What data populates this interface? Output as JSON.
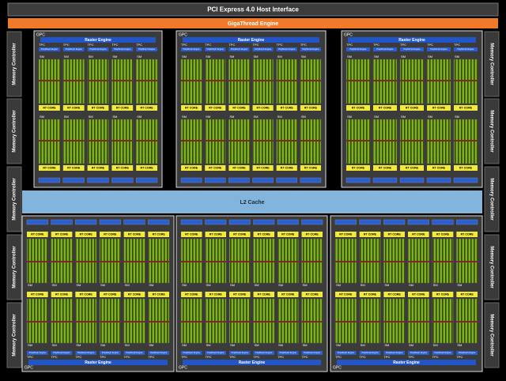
{
  "pci": "PCI Express 4.0 Host Interface",
  "gigathread": "GigaThread Engine",
  "l2_cache": "L2 Cache",
  "memory_controllers": {
    "left": [
      "Memory Controller",
      "Memory Controller",
      "Memory Controller",
      "Memory Controller",
      "Memory Controller"
    ],
    "right": [
      "Memory Controller",
      "Memory Controller",
      "Memory Controller",
      "Memory Controller",
      "Memory Controller"
    ]
  },
  "gpcs": [
    {
      "label": "GPC",
      "raster_engine": "Raster Engine",
      "tpcs": [
        {
          "label": "TPC",
          "polymorph_engine": "PolyMorph Engine",
          "sms": [
            {
              "label": "SM",
              "rt_core": "RT CORE"
            },
            {
              "label": "SM",
              "rt_core": "RT CORE"
            }
          ]
        },
        {
          "label": "TPC",
          "polymorph_engine": "PolyMorph Engine",
          "sms": [
            {
              "label": "SM",
              "rt_core": "RT CORE"
            },
            {
              "label": "SM",
              "rt_core": "RT CORE"
            }
          ]
        },
        {
          "label": "TPC",
          "polymorph_engine": "PolyMorph Engine",
          "sms": [
            {
              "label": "SM",
              "rt_core": "RT CORE"
            },
            {
              "label": "SM",
              "rt_core": "RT CORE"
            }
          ]
        },
        {
          "label": "TPC",
          "polymorph_engine": "PolyMorph Engine",
          "sms": [
            {
              "label": "SM",
              "rt_core": "RT CORE"
            },
            {
              "label": "SM",
              "rt_core": "RT CORE"
            }
          ]
        },
        {
          "label": "TPC",
          "polymorph_engine": "PolyMorph Engine",
          "sms": [
            {
              "label": "SM",
              "rt_core": "RT CORE"
            },
            {
              "label": "SM",
              "rt_core": "RT CORE"
            }
          ]
        }
      ]
    },
    {
      "label": "GPC",
      "raster_engine": "Raster Engine",
      "tpcs": [
        {
          "label": "TPC",
          "polymorph_engine": "PolyMorph Engine",
          "sms": [
            {
              "label": "SM",
              "rt_core": "RT CORE"
            },
            {
              "label": "SM",
              "rt_core": "RT CORE"
            }
          ]
        },
        {
          "label": "TPC",
          "polymorph_engine": "PolyMorph Engine",
          "sms": [
            {
              "label": "SM",
              "rt_core": "RT CORE"
            },
            {
              "label": "SM",
              "rt_core": "RT CORE"
            }
          ]
        },
        {
          "label": "TPC",
          "polymorph_engine": "PolyMorph Engine",
          "sms": [
            {
              "label": "SM",
              "rt_core": "RT CORE"
            },
            {
              "label": "SM",
              "rt_core": "RT CORE"
            }
          ]
        },
        {
          "label": "TPC",
          "polymorph_engine": "PolyMorph Engine",
          "sms": [
            {
              "label": "SM",
              "rt_core": "RT CORE"
            },
            {
              "label": "SM",
              "rt_core": "RT CORE"
            }
          ]
        },
        {
          "label": "TPC",
          "polymorph_engine": "PolyMorph Engine",
          "sms": [
            {
              "label": "SM",
              "rt_core": "RT CORE"
            },
            {
              "label": "SM",
              "rt_core": "RT CORE"
            }
          ]
        },
        {
          "label": "TPC",
          "polymorph_engine": "PolyMorph Engine",
          "sms": [
            {
              "label": "SM",
              "rt_core": "RT CORE"
            },
            {
              "label": "SM",
              "rt_core": "RT CORE"
            }
          ]
        }
      ]
    },
    {
      "label": "GPC",
      "raster_engine": "Raster Engine",
      "tpcs": [
        {
          "label": "TPC",
          "polymorph_engine": "PolyMorph Engine",
          "sms": [
            {
              "label": "SM",
              "rt_core": "RT CORE"
            },
            {
              "label": "SM",
              "rt_core": "RT CORE"
            }
          ]
        },
        {
          "label": "TPC",
          "polymorph_engine": "PolyMorph Engine",
          "sms": [
            {
              "label": "SM",
              "rt_core": "RT CORE"
            },
            {
              "label": "SM",
              "rt_core": "RT CORE"
            }
          ]
        },
        {
          "label": "TPC",
          "polymorph_engine": "PolyMorph Engine",
          "sms": [
            {
              "label": "SM",
              "rt_core": "RT CORE"
            },
            {
              "label": "SM",
              "rt_core": "RT CORE"
            }
          ]
        },
        {
          "label": "TPC",
          "polymorph_engine": "PolyMorph Engine",
          "sms": [
            {
              "label": "SM",
              "rt_core": "RT CORE"
            },
            {
              "label": "SM",
              "rt_core": "RT CORE"
            }
          ]
        },
        {
          "label": "TPC",
          "polymorph_engine": "PolyMorph Engine",
          "sms": [
            {
              "label": "SM",
              "rt_core": "RT CORE"
            },
            {
              "label": "SM",
              "rt_core": "RT CORE"
            }
          ]
        }
      ]
    },
    {
      "label": "GPC",
      "raster_engine": "Raster Engine",
      "tpcs": [
        {
          "label": "TPC",
          "polymorph_engine": "PolyMorph Engine",
          "sms": [
            {
              "label": "SM",
              "rt_core": "RT CORE"
            },
            {
              "label": "SM",
              "rt_core": "RT CORE"
            }
          ]
        },
        {
          "label": "TPC",
          "polymorph_engine": "PolyMorph Engine",
          "sms": [
            {
              "label": "SM",
              "rt_core": "RT CORE"
            },
            {
              "label": "SM",
              "rt_core": "RT CORE"
            }
          ]
        },
        {
          "label": "TPC",
          "polymorph_engine": "PolyMorph Engine",
          "sms": [
            {
              "label": "SM",
              "rt_core": "RT CORE"
            },
            {
              "label": "SM",
              "rt_core": "RT CORE"
            }
          ]
        },
        {
          "label": "TPC",
          "polymorph_engine": "PolyMorph Engine",
          "sms": [
            {
              "label": "SM",
              "rt_core": "RT CORE"
            },
            {
              "label": "SM",
              "rt_core": "RT CORE"
            }
          ]
        },
        {
          "label": "TPC",
          "polymorph_engine": "PolyMorph Engine",
          "sms": [
            {
              "label": "SM",
              "rt_core": "RT CORE"
            },
            {
              "label": "SM",
              "rt_core": "RT CORE"
            }
          ]
        },
        {
          "label": "TPC",
          "polymorph_engine": "PolyMorph Engine",
          "sms": [
            {
              "label": "SM",
              "rt_core": "RT CORE"
            },
            {
              "label": "SM",
              "rt_core": "RT CORE"
            }
          ]
        }
      ]
    },
    {
      "label": "GPC",
      "raster_engine": "Raster Engine",
      "tpcs": [
        {
          "label": "TPC",
          "polymorph_engine": "PolyMorph Engine",
          "sms": [
            {
              "label": "SM",
              "rt_core": "RT CORE"
            },
            {
              "label": "SM",
              "rt_core": "RT CORE"
            }
          ]
        },
        {
          "label": "TPC",
          "polymorph_engine": "PolyMorph Engine",
          "sms": [
            {
              "label": "SM",
              "rt_core": "RT CORE"
            },
            {
              "label": "SM",
              "rt_core": "RT CORE"
            }
          ]
        },
        {
          "label": "TPC",
          "polymorph_engine": "PolyMorph Engine",
          "sms": [
            {
              "label": "SM",
              "rt_core": "RT CORE"
            },
            {
              "label": "SM",
              "rt_core": "RT CORE"
            }
          ]
        },
        {
          "label": "TPC",
          "polymorph_engine": "PolyMorph Engine",
          "sms": [
            {
              "label": "SM",
              "rt_core": "RT CORE"
            },
            {
              "label": "SM",
              "rt_core": "RT CORE"
            }
          ]
        },
        {
          "label": "TPC",
          "polymorph_engine": "PolyMorph Engine",
          "sms": [
            {
              "label": "SM",
              "rt_core": "RT CORE"
            },
            {
              "label": "SM",
              "rt_core": "RT CORE"
            }
          ]
        },
        {
          "label": "TPC",
          "polymorph_engine": "PolyMorph Engine",
          "sms": [
            {
              "label": "SM",
              "rt_core": "RT CORE"
            },
            {
              "label": "SM",
              "rt_core": "RT CORE"
            }
          ]
        }
      ]
    },
    {
      "label": "GPC",
      "raster_engine": "Raster Engine",
      "tpcs": [
        {
          "label": "TPC",
          "polymorph_engine": "PolyMorph Engine",
          "sms": [
            {
              "label": "SM",
              "rt_core": "RT CORE"
            },
            {
              "label": "SM",
              "rt_core": "RT CORE"
            }
          ]
        },
        {
          "label": "TPC",
          "polymorph_engine": "PolyMorph Engine",
          "sms": [
            {
              "label": "SM",
              "rt_core": "RT CORE"
            },
            {
              "label": "SM",
              "rt_core": "RT CORE"
            }
          ]
        },
        {
          "label": "TPC",
          "polymorph_engine": "PolyMorph Engine",
          "sms": [
            {
              "label": "SM",
              "rt_core": "RT CORE"
            },
            {
              "label": "SM",
              "rt_core": "RT CORE"
            }
          ]
        },
        {
          "label": "TPC",
          "polymorph_engine": "PolyMorph Engine",
          "sms": [
            {
              "label": "SM",
              "rt_core": "RT CORE"
            },
            {
              "label": "SM",
              "rt_core": "RT CORE"
            }
          ]
        },
        {
          "label": "TPC",
          "polymorph_engine": "PolyMorph Engine",
          "sms": [
            {
              "label": "SM",
              "rt_core": "RT CORE"
            },
            {
              "label": "SM",
              "rt_core": "RT CORE"
            }
          ]
        },
        {
          "label": "TPC",
          "polymorph_engine": "PolyMorph Engine",
          "sms": [
            {
              "label": "SM",
              "rt_core": "RT CORE"
            },
            {
              "label": "SM",
              "rt_core": "RT CORE"
            }
          ]
        }
      ]
    }
  ]
}
